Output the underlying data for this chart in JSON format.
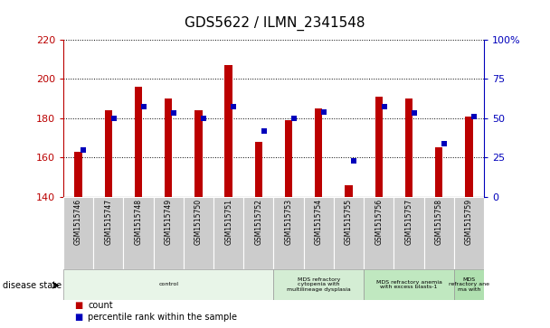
{
  "title": "GDS5622 / ILMN_2341548",
  "samples": [
    "GSM1515746",
    "GSM1515747",
    "GSM1515748",
    "GSM1515749",
    "GSM1515750",
    "GSM1515751",
    "GSM1515752",
    "GSM1515753",
    "GSM1515754",
    "GSM1515755",
    "GSM1515756",
    "GSM1515757",
    "GSM1515758",
    "GSM1515759"
  ],
  "count_values": [
    163,
    184,
    196,
    190,
    184,
    207,
    168,
    179,
    185,
    146,
    191,
    190,
    165,
    181
  ],
  "percentile_values": [
    30,
    50,
    57,
    53,
    50,
    57,
    42,
    50,
    54,
    23,
    57,
    53,
    34,
    51
  ],
  "ylim_left": [
    140,
    220
  ],
  "ylim_right": [
    0,
    100
  ],
  "yticks_left": [
    140,
    160,
    180,
    200,
    220
  ],
  "yticks_right": [
    0,
    25,
    50,
    75,
    100
  ],
  "bar_color": "#BB0000",
  "dot_color": "#0000BB",
  "disease_groups": [
    {
      "label": "control",
      "start": 0,
      "end": 7,
      "color": "#E8F5E8"
    },
    {
      "label": "MDS refractory\ncytopenia with\nmultilineage dysplasia",
      "start": 7,
      "end": 10,
      "color": "#D4EDD4"
    },
    {
      "label": "MDS refractory anemia\nwith excess blasts-1",
      "start": 10,
      "end": 13,
      "color": "#C0E8C0"
    },
    {
      "label": "MDS\nrefractory ane\nma with",
      "start": 13,
      "end": 14,
      "color": "#B0E0B0"
    }
  ]
}
